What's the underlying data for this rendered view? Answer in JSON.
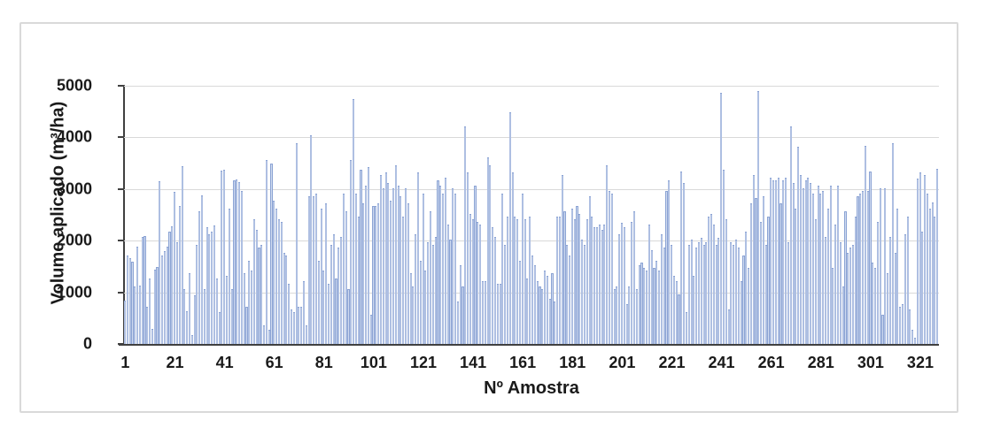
{
  "chart_data": {
    "type": "bar",
    "title": "",
    "xlabel": "Nº Amostra",
    "ylabel": "Volume aplicado (m³/ha)",
    "ylim": [
      0,
      5000
    ],
    "y_ticks": [
      0,
      1000,
      2000,
      3000,
      4000,
      5000
    ],
    "x_ticks": [
      1,
      21,
      41,
      61,
      81,
      101,
      121,
      141,
      161,
      181,
      201,
      221,
      241,
      261,
      281,
      301,
      321
    ],
    "grid": "horizontal",
    "legend": "none",
    "bar_fill": "#d0dbf0",
    "bar_edge": "#8ba3d4",
    "x_is_sample_number": true,
    "values": [
      830,
      1700,
      1640,
      1580,
      1100,
      1860,
      1120,
      2050,
      2070,
      700,
      1250,
      280,
      1430,
      1470,
      3130,
      1700,
      1780,
      1860,
      2150,
      2260,
      2930,
      1960,
      2650,
      3430,
      1050,
      620,
      1350,
      150,
      920,
      1900,
      2550,
      2860,
      1050,
      2250,
      2100,
      2160,
      2270,
      1250,
      600,
      3340,
      3360,
      1300,
      2600,
      1050,
      3150,
      3170,
      3120,
      2950,
      1350,
      700,
      1600,
      1400,
      2400,
      2200,
      1850,
      1900,
      350,
      3550,
      250,
      3480,
      2750,
      2600,
      2400,
      2350,
      1750,
      1700,
      1150,
      650,
      600,
      3870,
      700,
      700,
      1200,
      350,
      2850,
      4030,
      2850,
      2900,
      1600,
      2600,
      1400,
      2700,
      1150,
      1900,
      2100,
      1250,
      1850,
      2050,
      2900,
      2550,
      1050,
      3550,
      4730,
      2900,
      2450,
      3350,
      2700,
      3050,
      3400,
      550,
      2650,
      2650,
      2700,
      3250,
      3000,
      3300,
      3100,
      2750,
      3000,
      3450,
      3050,
      2850,
      2450,
      3000,
      2700,
      1350,
      1100,
      2100,
      3300,
      1600,
      2900,
      1400,
      1950,
      2550,
      1900,
      2050,
      3150,
      3050,
      2900,
      3200,
      2300,
      2000,
      3000,
      2900,
      800,
      1500,
      1100,
      4200,
      3300,
      2500,
      2400,
      3050,
      2350,
      2300,
      1200,
      1200,
      3600,
      3450,
      2250,
      2050,
      1150,
      1150,
      2900,
      1900,
      2450,
      4470,
      3300,
      2450,
      2400,
      1600,
      2900,
      2400,
      1250,
      2450,
      1700,
      1500,
      1200,
      1100,
      1050,
      1400,
      1300,
      850,
      1350,
      800,
      2450,
      2450,
      3250,
      2550,
      1900,
      1700,
      2600,
      2400,
      2650,
      2500,
      2000,
      1900,
      2400,
      2850,
      2450,
      2250,
      2250,
      2300,
      2200,
      2300,
      3450,
      2950,
      2900,
      1050,
      1100,
      2100,
      2330,
      2250,
      750,
      1100,
      2350,
      2550,
      1050,
      1500,
      1550,
      1450,
      1400,
      2300,
      1800,
      1450,
      1600,
      1400,
      2100,
      1850,
      2950,
      3150,
      1900,
      1300,
      1200,
      950,
      3330,
      3100,
      600,
      1900,
      2000,
      1300,
      1850,
      1950,
      2030,
      1900,
      1950,
      2450,
      2500,
      2300,
      1900,
      2040,
      4850,
      3360,
      2400,
      650,
      1950,
      1900,
      2000,
      1850,
      1200,
      1700,
      2150,
      1450,
      2700,
      3250,
      2800,
      4880,
      2350,
      2850,
      1900,
      2450,
      3200,
      3150,
      3150,
      3200,
      2700,
      3150,
      3200,
      1950,
      4200,
      3100,
      2600,
      3800,
      3250,
      3000,
      3150,
      3200,
      3100,
      2900,
      2400,
      3050,
      2900,
      2950,
      2050,
      2600,
      3050,
      1450,
      2300,
      3050,
      1950,
      1100,
      2550,
      1750,
      1850,
      1900,
      2450,
      2850,
      2900,
      2950,
      3820,
      2950,
      3315,
      1550,
      1450,
      2350,
      3000,
      550,
      3000,
      1350,
      2050,
      3870,
      1750,
      2600,
      700,
      750,
      2100,
      2450,
      650,
      250,
      100,
      3180,
      3300,
      2150,
      3250,
      2900,
      2600,
      2730,
      2450,
      3370
    ]
  }
}
